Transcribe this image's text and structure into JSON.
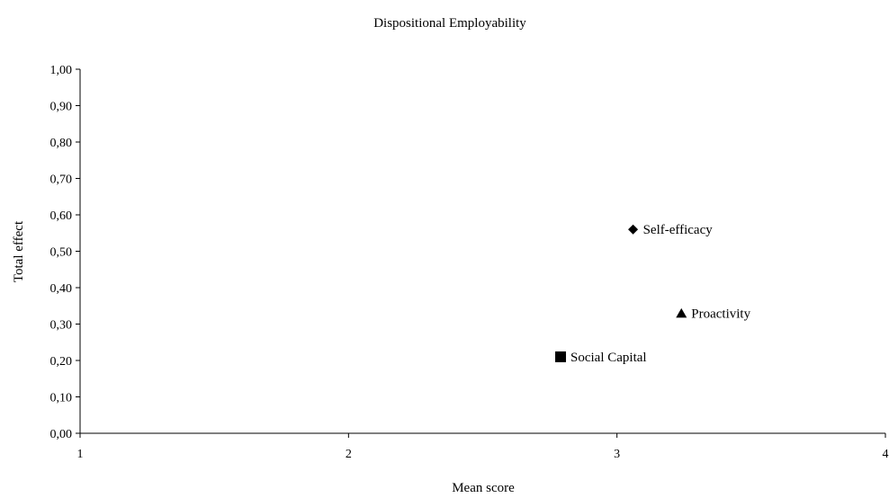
{
  "chart_data": {
    "type": "scatter",
    "title": "Dispositional Employability",
    "xlabel": "Mean score",
    "ylabel": "Total effect",
    "xlim": [
      1,
      4
    ],
    "ylim": [
      0,
      1
    ],
    "x_ticks": [
      "1",
      "2",
      "3",
      "4"
    ],
    "y_ticks": [
      "0,00",
      "0,10",
      "0,20",
      "0,30",
      "0,40",
      "0,50",
      "0,60",
      "0,70",
      "0,80",
      "0,90",
      "1,00"
    ],
    "grid": false,
    "legend": "none",
    "points": [
      {
        "label": "Self-efficacy",
        "x": 3.06,
        "y": 0.56,
        "marker": "diamond"
      },
      {
        "label": "Proactivity",
        "x": 3.24,
        "y": 0.33,
        "marker": "triangle"
      },
      {
        "label": "Social Capital",
        "x": 2.79,
        "y": 0.21,
        "marker": "square"
      }
    ]
  }
}
